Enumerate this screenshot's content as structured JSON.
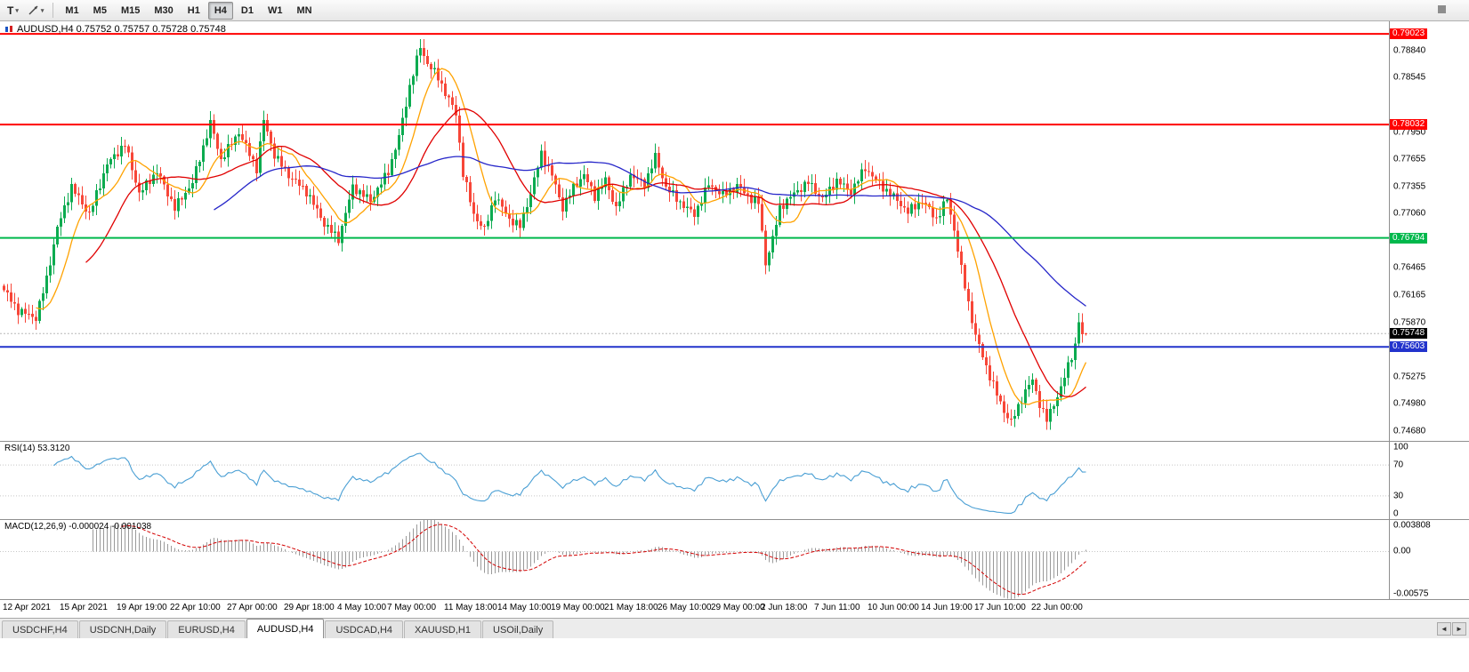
{
  "toolbar": {
    "text_tool_label": "T",
    "dropdown_glyph": "▾",
    "timeframes": [
      "M1",
      "M5",
      "M15",
      "M30",
      "H1",
      "H4",
      "D1",
      "W1",
      "MN"
    ],
    "active_timeframe": "H4"
  },
  "chart": {
    "title": "AUDUSD,H4 0.75752 0.75757 0.75728 0.75748"
  },
  "chart_data": {
    "type": "candlestick",
    "symbol": "AUDUSD",
    "timeframe": "H4",
    "last_quote": {
      "open": 0.75752,
      "high": 0.75757,
      "low": 0.75728,
      "close": 0.75748
    },
    "price_range": {
      "top": 0.7916,
      "bottom": 0.74575
    },
    "candle_count": 305,
    "colors": {
      "up": "#0cab50",
      "down": "#f74638",
      "ma_fast": "#ffa200",
      "ma_mid": "#e00000",
      "ma_slow": "#2626c9",
      "rsi": "#4a9fd4",
      "macd_hist": "#9a9a9a",
      "macd_signal": "#d40000"
    },
    "price_axis_labels": [
      {
        "label": "0.78840",
        "value": 0.7884
      },
      {
        "label": "0.78545",
        "value": 0.78545
      },
      {
        "label": "0.77950",
        "value": 0.7795
      },
      {
        "label": "0.77655",
        "value": 0.77655
      },
      {
        "label": "0.77355",
        "value": 0.77355
      },
      {
        "label": "0.77060",
        "value": 0.7706
      },
      {
        "label": "0.76465",
        "value": 0.76465
      },
      {
        "label": "0.76165",
        "value": 0.76165
      },
      {
        "label": "0.75870",
        "value": 0.7587
      },
      {
        "label": "0.75275",
        "value": 0.75275
      },
      {
        "label": "0.74980",
        "value": 0.7498
      },
      {
        "label": "0.74680",
        "value": 0.7468
      }
    ],
    "horizontal_lines": [
      {
        "label": "0.79023",
        "price": 0.79023,
        "color": "#ff0000"
      },
      {
        "label": "0.78032",
        "price": 0.78032,
        "color": "#ff0000"
      },
      {
        "label": "0.76794",
        "price": 0.76794,
        "color": "#00b84c"
      },
      {
        "label": "0.75603",
        "price": 0.75603,
        "color": "#2233cc"
      }
    ],
    "current_price": {
      "label": "0.75748",
      "price": 0.75748,
      "bg": "#000000"
    },
    "moving_averages": [
      {
        "period": 10,
        "color_key": "ma_fast"
      },
      {
        "period": 24,
        "color_key": "ma_mid"
      },
      {
        "period": 60,
        "color_key": "ma_slow"
      }
    ],
    "anchors": [
      [
        0,
        0.7622
      ],
      [
        4,
        0.76
      ],
      [
        9,
        0.7592
      ],
      [
        12,
        0.7635
      ],
      [
        15,
        0.769
      ],
      [
        19,
        0.7735
      ],
      [
        24,
        0.7705
      ],
      [
        29,
        0.776
      ],
      [
        34,
        0.7782
      ],
      [
        38,
        0.7728
      ],
      [
        43,
        0.7752
      ],
      [
        48,
        0.7712
      ],
      [
        53,
        0.774
      ],
      [
        58,
        0.7805
      ],
      [
        61,
        0.7765
      ],
      [
        66,
        0.7795
      ],
      [
        71,
        0.7755
      ],
      [
        73,
        0.7808
      ],
      [
        76,
        0.777
      ],
      [
        80,
        0.7748
      ],
      [
        85,
        0.773
      ],
      [
        90,
        0.7695
      ],
      [
        94,
        0.7678
      ],
      [
        98,
        0.7735
      ],
      [
        103,
        0.772
      ],
      [
        108,
        0.7752
      ],
      [
        111,
        0.779
      ],
      [
        114,
        0.7845
      ],
      [
        117,
        0.7888
      ],
      [
        119,
        0.787
      ],
      [
        122,
        0.7855
      ],
      [
        124,
        0.7838
      ],
      [
        127,
        0.7815
      ],
      [
        129,
        0.775
      ],
      [
        132,
        0.7705
      ],
      [
        135,
        0.7688
      ],
      [
        138,
        0.7725
      ],
      [
        142,
        0.77
      ],
      [
        145,
        0.7692
      ],
      [
        148,
        0.7728
      ],
      [
        151,
        0.7772
      ],
      [
        154,
        0.7748
      ],
      [
        157,
        0.7712
      ],
      [
        160,
        0.7735
      ],
      [
        163,
        0.7748
      ],
      [
        166,
        0.7725
      ],
      [
        169,
        0.7742
      ],
      [
        172,
        0.7712
      ],
      [
        176,
        0.7748
      ],
      [
        180,
        0.7738
      ],
      [
        183,
        0.7768
      ],
      [
        186,
        0.7735
      ],
      [
        190,
        0.7718
      ],
      [
        194,
        0.7705
      ],
      [
        198,
        0.7738
      ],
      [
        202,
        0.7726
      ],
      [
        206,
        0.7736
      ],
      [
        210,
        0.7722
      ],
      [
        212,
        0.7718
      ],
      [
        214,
        0.7652
      ],
      [
        216,
        0.7678
      ],
      [
        218,
        0.7712
      ],
      [
        222,
        0.7728
      ],
      [
        226,
        0.774
      ],
      [
        230,
        0.7722
      ],
      [
        234,
        0.7742
      ],
      [
        238,
        0.773
      ],
      [
        242,
        0.7756
      ],
      [
        246,
        0.7738
      ],
      [
        250,
        0.7724
      ],
      [
        254,
        0.7708
      ],
      [
        258,
        0.772
      ],
      [
        262,
        0.77
      ],
      [
        265,
        0.7722
      ],
      [
        267,
        0.7688
      ],
      [
        269,
        0.7645
      ],
      [
        271,
        0.7608
      ],
      [
        273,
        0.7572
      ],
      [
        275,
        0.755
      ],
      [
        277,
        0.7528
      ],
      [
        279,
        0.7508
      ],
      [
        281,
        0.749
      ],
      [
        283,
        0.7478
      ],
      [
        285,
        0.7495
      ],
      [
        287,
        0.7512
      ],
      [
        289,
        0.7524
      ],
      [
        291,
        0.7498
      ],
      [
        293,
        0.748
      ],
      [
        295,
        0.7498
      ],
      [
        297,
        0.7515
      ],
      [
        299,
        0.754
      ],
      [
        301,
        0.7562
      ],
      [
        302,
        0.7588
      ],
      [
        303,
        0.7572
      ],
      [
        304,
        0.7575
      ]
    ],
    "rsi_panel": {
      "label": "RSI(14) 53.3120",
      "period": 14,
      "levels": [
        70,
        30
      ],
      "axis": [
        {
          "label": "100",
          "value": 100
        },
        {
          "label": "70",
          "value": 70
        },
        {
          "label": "30",
          "value": 30
        },
        {
          "label": "0",
          "value": 0
        }
      ]
    },
    "macd_panel": {
      "label": "MACD(12,26,9) -0.000024 -0.001038",
      "fast": 12,
      "slow": 26,
      "signal": 9,
      "range": {
        "top": 0.003808,
        "bottom": -0.00575
      },
      "axis": [
        {
          "label": "0.003808",
          "value": 0.003808
        },
        {
          "label": "0.00",
          "value": 0
        },
        {
          "label": "-0.00575",
          "value": -0.00575
        }
      ]
    },
    "time_axis": [
      {
        "label": "12 Apr 2021",
        "i": 0
      },
      {
        "label": "15 Apr 2021",
        "i": 16
      },
      {
        "label": "19 Apr 19:00",
        "i": 32
      },
      {
        "label": "22 Apr 10:00",
        "i": 47
      },
      {
        "label": "27 Apr 00:00",
        "i": 63
      },
      {
        "label": "29 Apr 18:00",
        "i": 79
      },
      {
        "label": "4 May 10:00",
        "i": 94
      },
      {
        "label": "7 May 00:00",
        "i": 108
      },
      {
        "label": "11 May 18:00",
        "i": 124
      },
      {
        "label": "14 May 10:00",
        "i": 139
      },
      {
        "label": "19 May 00:00",
        "i": 154
      },
      {
        "label": "21 May 18:00",
        "i": 169
      },
      {
        "label": "26 May 10:00",
        "i": 184
      },
      {
        "label": "29 May 00:00",
        "i": 199
      },
      {
        "label": "2 Jun 18:00",
        "i": 213
      },
      {
        "label": "7 Jun 11:00",
        "i": 228
      },
      {
        "label": "10 Jun 00:00",
        "i": 243
      },
      {
        "label": "14 Jun 19:00",
        "i": 258
      },
      {
        "label": "17 Jun 10:00",
        "i": 273
      },
      {
        "label": "22 Jun 00:00",
        "i": 289
      }
    ]
  },
  "tabs": {
    "items": [
      "USDCHF,H4",
      "USDCNH,Daily",
      "EURUSD,H4",
      "AUDUSD,H4",
      "USDCAD,H4",
      "XAUUSD,H1",
      "USOil,Daily"
    ],
    "active": "AUDUSD,H4",
    "scroll_left": "◄",
    "scroll_right": "►"
  }
}
